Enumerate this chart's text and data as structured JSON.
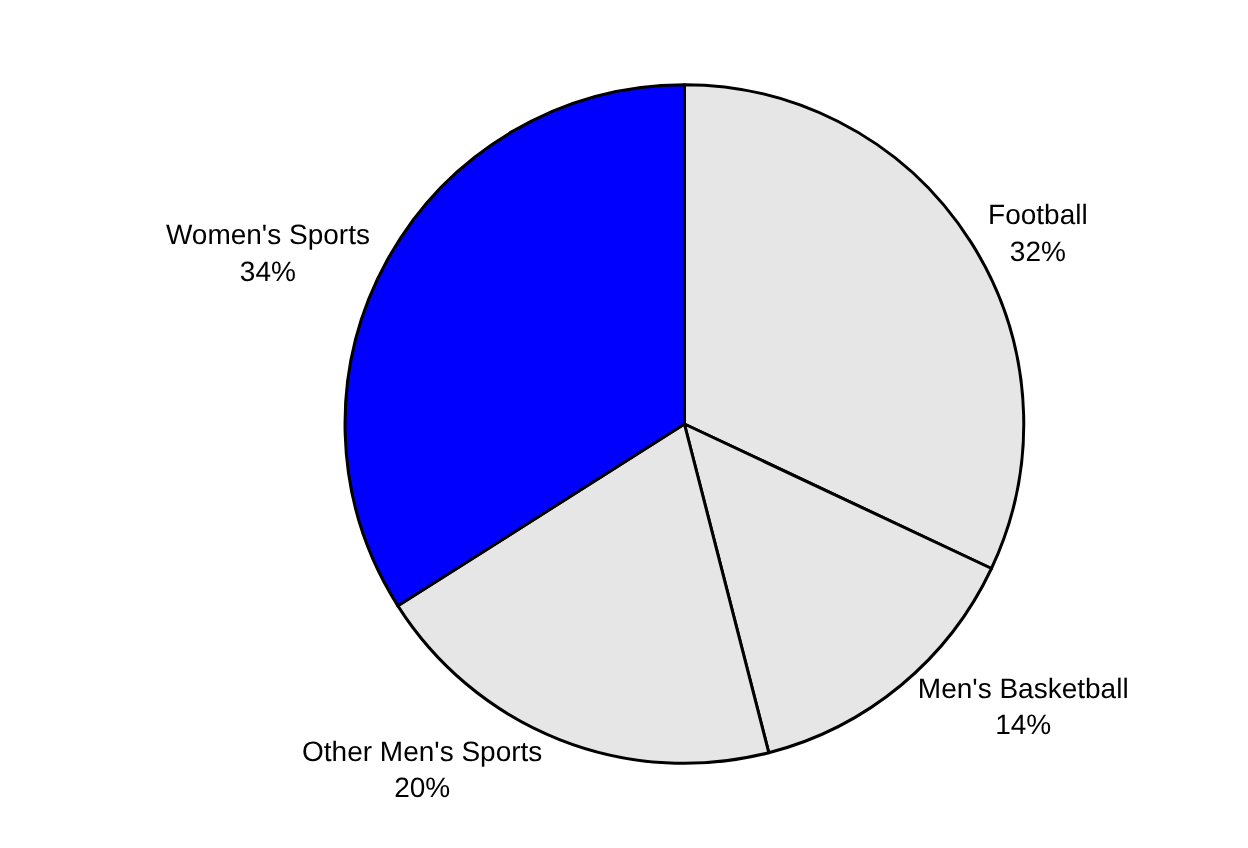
{
  "chart_data": {
    "type": "pie",
    "categories": [
      "Football",
      "Men's Basketball",
      "Other Men's Sports",
      "Women's Sports"
    ],
    "values": [
      32,
      14,
      20,
      34
    ],
    "value_labels": [
      "32%",
      "14%",
      "20%",
      "34%"
    ],
    "colors": [
      "#e6e6e6",
      "#e6e6e6",
      "#e6e6e6",
      "#0000ff"
    ],
    "legend": false
  }
}
